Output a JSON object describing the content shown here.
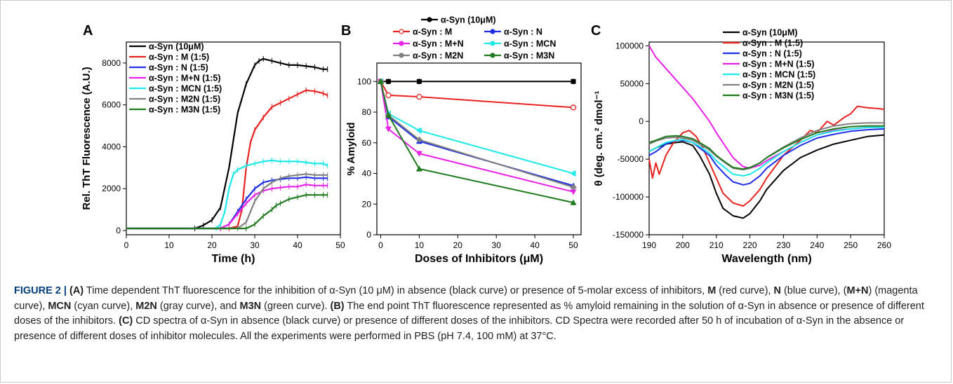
{
  "chart_data": [
    {
      "type": "line",
      "panel_label": "A",
      "xlabel": "Time (h)",
      "ylabel": "Rel. ThT Fluorescence (A.U.)",
      "xlim": [
        0,
        50
      ],
      "ylim": [
        -200,
        9000
      ],
      "xticks": [
        0,
        10,
        20,
        30,
        40,
        50
      ],
      "yticks": [
        0,
        2000,
        4000,
        6000,
        8000
      ],
      "legend_position": "top-left",
      "series": [
        {
          "name": "α-Syn (10μM)",
          "color": "#000000",
          "x": [
            0,
            16,
            18,
            20,
            22,
            24,
            26,
            28,
            30,
            31,
            32,
            34,
            36,
            38,
            40,
            42,
            44,
            46,
            47
          ],
          "y": [
            100,
            100,
            250,
            500,
            1100,
            3000,
            5600,
            7000,
            7900,
            8100,
            8200,
            8100,
            8000,
            7900,
            7900,
            7850,
            7800,
            7700,
            7700
          ]
        },
        {
          "name": "α-Syn : M (1:5)",
          "color": "#e8231f",
          "x": [
            0,
            24,
            26,
            27,
            28,
            29,
            30,
            32,
            34,
            36,
            38,
            40,
            42,
            44,
            46,
            47
          ],
          "y": [
            100,
            100,
            200,
            1000,
            3000,
            4200,
            4800,
            5400,
            5900,
            6100,
            6300,
            6500,
            6700,
            6650,
            6550,
            6450
          ]
        },
        {
          "name": "α-Syn : N (1:5)",
          "color": "#1f2fe8",
          "x": [
            0,
            22,
            24,
            26,
            28,
            30,
            32,
            34,
            36,
            38,
            40,
            42,
            44,
            46,
            47
          ],
          "y": [
            100,
            100,
            300,
            900,
            1500,
            2000,
            2300,
            2400,
            2450,
            2500,
            2500,
            2550,
            2500,
            2500,
            2500
          ]
        },
        {
          "name": "α-Syn : M+N (1:5)",
          "color": "#e821e8",
          "x": [
            0,
            22,
            24,
            26,
            28,
            30,
            32,
            34,
            36,
            38,
            40,
            42,
            44,
            46,
            47
          ],
          "y": [
            100,
            100,
            300,
            800,
            1300,
            1700,
            1900,
            2000,
            2050,
            2100,
            2100,
            2200,
            2150,
            2150,
            2150
          ]
        },
        {
          "name": "α-Syn : MCN (1:5)",
          "color": "#1fe8e8",
          "x": [
            0,
            21,
            22,
            23,
            24,
            25,
            26,
            28,
            30,
            32,
            34,
            36,
            38,
            40,
            42,
            44,
            46,
            47
          ],
          "y": [
            100,
            100,
            300,
            900,
            2000,
            2700,
            2900,
            3100,
            3200,
            3300,
            3350,
            3300,
            3300,
            3300,
            3250,
            3200,
            3200,
            3100
          ]
        },
        {
          "name": "α-Syn : M2N (1:5)",
          "color": "#808080",
          "x": [
            0,
            26,
            28,
            30,
            32,
            34,
            36,
            38,
            40,
            42,
            44,
            46,
            47
          ],
          "y": [
            100,
            100,
            400,
            1400,
            2000,
            2300,
            2500,
            2600,
            2650,
            2700,
            2650,
            2650,
            2650
          ]
        },
        {
          "name": "α-Syn : M3N (1:5)",
          "color": "#1f7a1f",
          "x": [
            0,
            28,
            30,
            32,
            34,
            35,
            36,
            38,
            40,
            42,
            44,
            46,
            47
          ],
          "y": [
            100,
            100,
            300,
            700,
            1000,
            1200,
            1300,
            1500,
            1600,
            1700,
            1700,
            1700,
            1700
          ]
        }
      ]
    },
    {
      "type": "line",
      "panel_label": "B",
      "xlabel": "Doses of Inhibitors (μM)",
      "ylabel": "% Amyloid",
      "xlim": [
        -1,
        52
      ],
      "ylim": [
        0,
        112
      ],
      "xticks": [
        0,
        10,
        20,
        30,
        40,
        50
      ],
      "yticks": [
        0,
        20,
        40,
        60,
        80,
        100
      ],
      "legend_position": "top",
      "series": [
        {
          "name": "α-Syn (10μM)",
          "color": "#000000",
          "marker": "square",
          "x": [
            0,
            2,
            10,
            50
          ],
          "y": [
            100,
            100,
            100,
            100
          ]
        },
        {
          "name": "α-Syn : M",
          "color": "#e8231f",
          "marker": "circle-open",
          "x": [
            0,
            2,
            10,
            50
          ],
          "y": [
            100,
            91,
            90,
            83
          ]
        },
        {
          "name": "α-Syn : N",
          "color": "#1f2fe8",
          "marker": "triangle-up",
          "x": [
            0,
            2,
            10,
            50
          ],
          "y": [
            100,
            77,
            61,
            32
          ]
        },
        {
          "name": "α-Syn : M+N",
          "color": "#e821e8",
          "marker": "triangle-down",
          "x": [
            0,
            2,
            10,
            50
          ],
          "y": [
            100,
            69,
            53,
            28
          ]
        },
        {
          "name": "α-Syn : MCN",
          "color": "#1fe8e8",
          "marker": "triangle-left",
          "x": [
            0,
            2,
            10,
            50
          ],
          "y": [
            100,
            79,
            68,
            40
          ]
        },
        {
          "name": "α-Syn : M2N",
          "color": "#808080",
          "marker": "diamond",
          "x": [
            0,
            2,
            10,
            50
          ],
          "y": [
            100,
            78,
            62,
            31
          ]
        },
        {
          "name": "α-Syn : M3N",
          "color": "#1f7a1f",
          "marker": "triangle-up",
          "x": [
            0,
            2,
            10,
            50
          ],
          "y": [
            100,
            78,
            43,
            21
          ]
        }
      ]
    },
    {
      "type": "line",
      "panel_label": "C",
      "xlabel": "Wavelength (nm)",
      "ylabel": "θ (deg. cm.² dmol⁻¹",
      "xlim": [
        190,
        260
      ],
      "ylim": [
        -150000,
        105000
      ],
      "xticks": [
        190,
        200,
        210,
        220,
        230,
        240,
        250,
        260
      ],
      "yticks": [
        100000,
        50000,
        0,
        -50000,
        -100000,
        -150000
      ],
      "legend_position": "top-right",
      "series": [
        {
          "name": "α-Syn (10μM)",
          "color": "#000000",
          "x": [
            190,
            192,
            195,
            198,
            200,
            203,
            205,
            208,
            210,
            212,
            215,
            218,
            220,
            223,
            225,
            230,
            235,
            240,
            245,
            250,
            255,
            260
          ],
          "y": [
            -40000,
            -35000,
            -30000,
            -28000,
            -27000,
            -32000,
            -45000,
            -70000,
            -95000,
            -115000,
            -125000,
            -128000,
            -122000,
            -105000,
            -90000,
            -65000,
            -48000,
            -38000,
            -30000,
            -25000,
            -20000,
            -18000
          ]
        },
        {
          "name": "α-Syn : M (1:5)",
          "color": "#e8231f",
          "x": [
            190,
            191,
            192,
            193,
            195,
            197,
            200,
            202,
            204,
            206,
            208,
            210,
            212,
            215,
            218,
            220,
            223,
            225,
            230,
            235,
            238,
            240,
            243,
            245,
            248,
            250,
            252,
            255,
            258,
            260
          ],
          "y": [
            -50000,
            -75000,
            -55000,
            -70000,
            -45000,
            -30000,
            -15000,
            -12000,
            -20000,
            -35000,
            -55000,
            -75000,
            -95000,
            -108000,
            -112000,
            -105000,
            -90000,
            -75000,
            -45000,
            -25000,
            -12000,
            -15000,
            0,
            -5000,
            5000,
            10000,
            20000,
            18000,
            17000,
            16000
          ]
        },
        {
          "name": "α-Syn : N (1:5)",
          "color": "#1f2fe8",
          "x": [
            190,
            192,
            195,
            198,
            200,
            203,
            205,
            208,
            210,
            213,
            215,
            218,
            220,
            223,
            225,
            230,
            235,
            240,
            245,
            250,
            255,
            260
          ],
          "y": [
            -45000,
            -40000,
            -30000,
            -25000,
            -25000,
            -28000,
            -35000,
            -45000,
            -58000,
            -72000,
            -80000,
            -84000,
            -82000,
            -72000,
            -62000,
            -45000,
            -32000,
            -22000,
            -17000,
            -13000,
            -11000,
            -10000
          ]
        },
        {
          "name": "α-Syn : M+N (1:5)",
          "color": "#e821e8",
          "x": [
            190,
            192,
            195,
            198,
            200,
            203,
            205,
            208,
            210,
            213,
            215,
            218,
            220,
            223,
            225,
            230,
            235,
            240,
            245,
            250,
            255,
            260
          ],
          "y": [
            100000,
            85000,
            70000,
            55000,
            45000,
            30000,
            18000,
            0,
            -15000,
            -35000,
            -48000,
            -60000,
            -62000,
            -58000,
            -52000,
            -40000,
            -28000,
            -18000,
            -12000,
            -10000,
            -8000,
            -8000
          ]
        },
        {
          "name": "α-Syn : MCN (1:5)",
          "color": "#1fe8e8",
          "x": [
            190,
            192,
            195,
            198,
            200,
            203,
            205,
            208,
            210,
            213,
            215,
            218,
            220,
            223,
            225,
            230,
            235,
            240,
            245,
            250,
            255,
            260
          ],
          "y": [
            -40000,
            -35000,
            -28000,
            -25000,
            -24000,
            -28000,
            -33000,
            -42000,
            -52000,
            -63000,
            -70000,
            -72000,
            -70000,
            -62000,
            -55000,
            -40000,
            -28000,
            -18000,
            -13000,
            -10000,
            -8000,
            -8000
          ]
        },
        {
          "name": "α-Syn : M2N (1:5)",
          "color": "#808080",
          "x": [
            190,
            192,
            195,
            198,
            200,
            203,
            205,
            208,
            210,
            213,
            215,
            218,
            220,
            223,
            225,
            230,
            235,
            240,
            245,
            250,
            255,
            260
          ],
          "y": [
            -30000,
            -26000,
            -22000,
            -21000,
            -22000,
            -25000,
            -30000,
            -38000,
            -46000,
            -56000,
            -62000,
            -64000,
            -62000,
            -55000,
            -48000,
            -34000,
            -22000,
            -12000,
            -6000,
            -3000,
            -2000,
            -2000
          ]
        },
        {
          "name": "α-Syn : M3N (1:5)",
          "color": "#1f7a1f",
          "x": [
            190,
            192,
            195,
            198,
            200,
            203,
            205,
            208,
            210,
            213,
            215,
            218,
            220,
            223,
            225,
            230,
            235,
            240,
            245,
            250,
            255,
            260
          ],
          "y": [
            -28000,
            -25000,
            -20000,
            -19000,
            -20000,
            -23000,
            -28000,
            -36000,
            -45000,
            -55000,
            -61000,
            -63000,
            -61000,
            -55000,
            -48000,
            -35000,
            -24000,
            -15000,
            -10000,
            -7000,
            -6000,
            -6000
          ]
        }
      ]
    }
  ],
  "caption": {
    "prefix": "FIGURE 2 |",
    "segments": [
      {
        "text": " (A)",
        "bold": true
      },
      {
        "text": " Time dependent ThT fluorescence for the inhibition of α-Syn (10 μM) in absence (black curve) or presence of 5-molar excess of inhibitors, ",
        "bold": false
      },
      {
        "text": "M",
        "bold": true
      },
      {
        "text": " (red curve), ",
        "bold": false
      },
      {
        "text": "N",
        "bold": true
      },
      {
        "text": " (blue curve), (",
        "bold": false
      },
      {
        "text": "M+N",
        "bold": true
      },
      {
        "text": ") (magenta curve), ",
        "bold": false
      },
      {
        "text": "MCN",
        "bold": true
      },
      {
        "text": " (cyan curve), ",
        "bold": false
      },
      {
        "text": "M2N",
        "bold": true
      },
      {
        "text": " (gray curve), and ",
        "bold": false
      },
      {
        "text": "M3N",
        "bold": true
      },
      {
        "text": " (green curve). ",
        "bold": false
      },
      {
        "text": "(B)",
        "bold": true
      },
      {
        "text": " The end point ThT fluorescence represented as % amyloid remaining in the solution of α-Syn in absence or presence of different doses of the inhibitors. ",
        "bold": false
      },
      {
        "text": "(C)",
        "bold": true
      },
      {
        "text": " CD spectra of α-Syn in absence (black curve) or presence of different doses of the inhibitors. CD Spectra were recorded after 50 h of incubation of α-Syn in the absence or presence of different doses of inhibitor molecules. All the experiments were performed in PBS (pH 7.4, 100 mM) at 37°C.",
        "bold": false
      }
    ]
  }
}
